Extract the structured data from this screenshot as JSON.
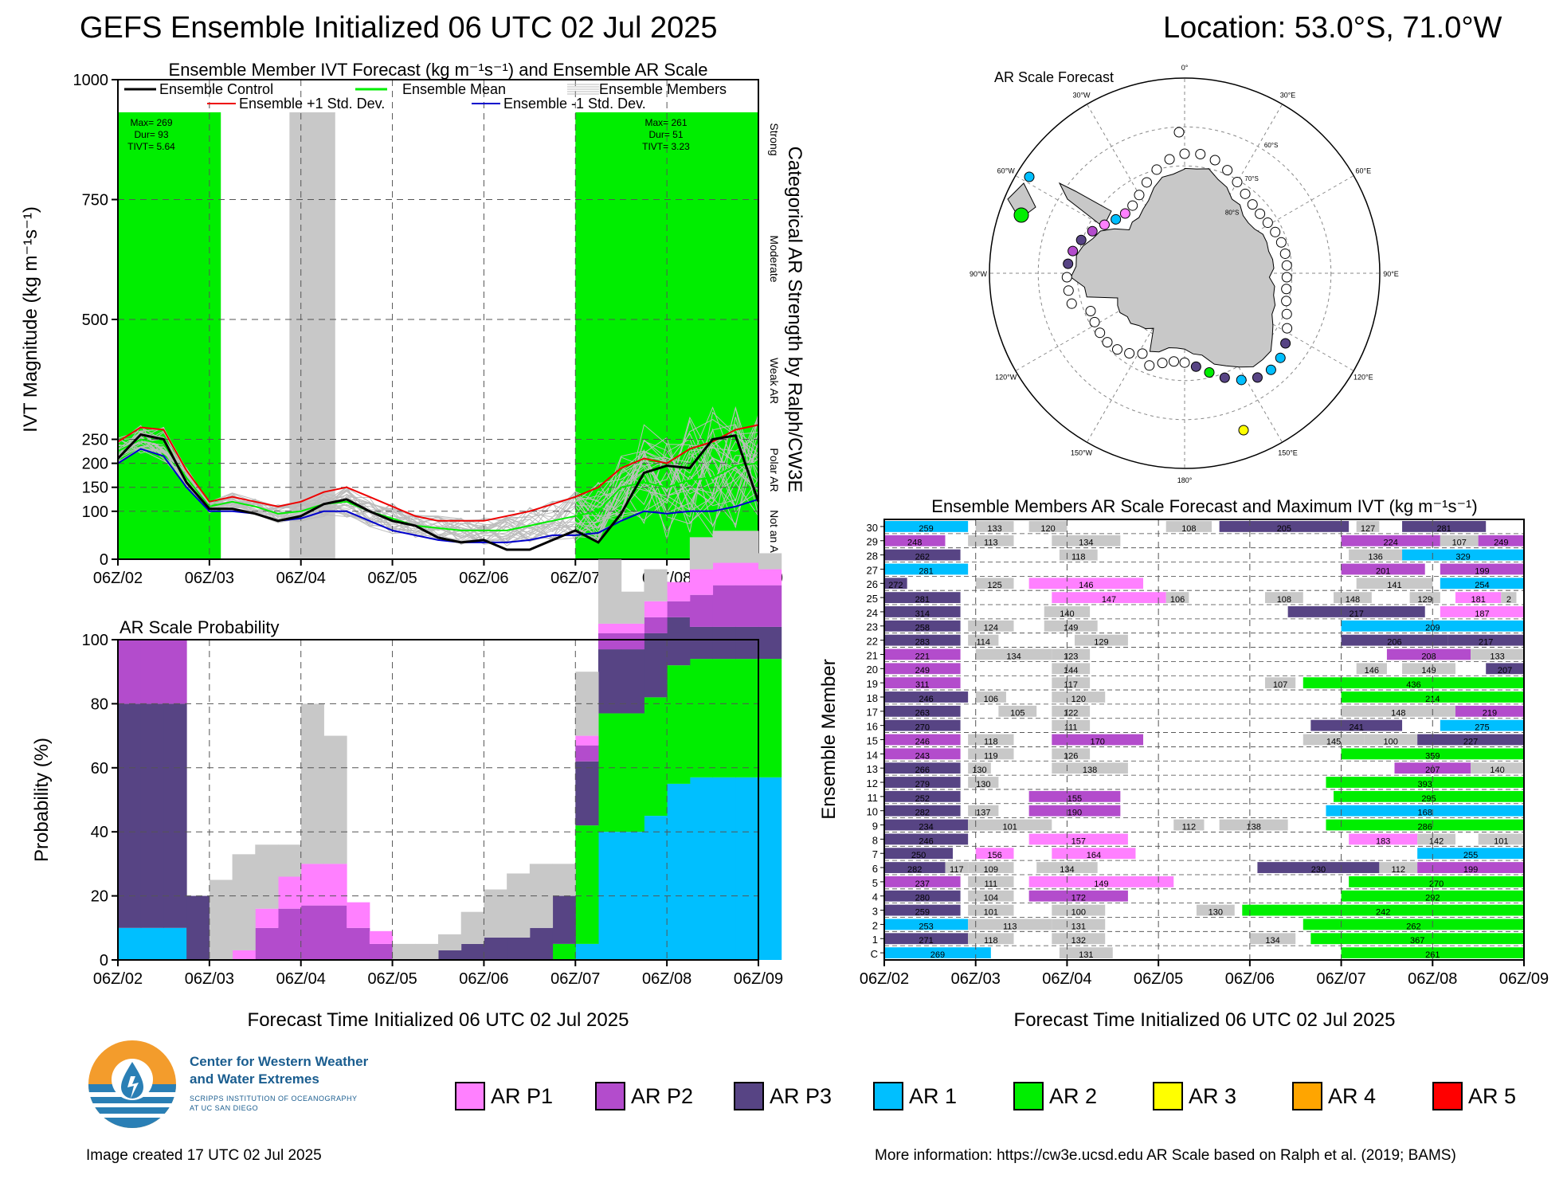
{
  "header": {
    "title": "GEFS Ensemble Initialized 06 UTC 02 Jul 2025",
    "location": "Location: 53.0°S, 71.0°W"
  },
  "colors": {
    "AR_P1": "#ff80ff",
    "AR_P2": "#b34ccc",
    "AR_P3": "#574484",
    "AR_1": "#00bfff",
    "AR_2": "#00ee00",
    "AR_3": "#ffff00",
    "AR_4": "#ffa500",
    "AR_5": "#ff0000",
    "gray": "#c8c8c8",
    "control": "#000000",
    "mean": "#00ee00",
    "plus": "#ee0000",
    "minus": "#0000cc"
  },
  "x_ticks": [
    "06Z/02",
    "06Z/03",
    "06Z/04",
    "06Z/05",
    "06Z/06",
    "06Z/07",
    "06Z/08",
    "06Z/09"
  ],
  "ivt_panel": {
    "subtitle": "Ensemble Member IVT Forecast (kg m⁻¹s⁻¹) and Ensemble AR Scale",
    "ylabel": "IVT Magnitude (kg m⁻¹s⁻¹)",
    "right_label": "Categorical AR Strength by Ralph/CW3E",
    "y_ticks": [
      0,
      100,
      150,
      200,
      250,
      500,
      750,
      1000
    ],
    "legend": {
      "control": "Ensemble Control",
      "mean": "Ensemble Mean",
      "members": "Ensemble Members",
      "plus": "Ensemble +1 Std. Dev.",
      "minus": "Ensemble -1 Std. Dev."
    },
    "categories": [
      "Strong",
      "Moderate",
      "Weak AR",
      "Polar AR",
      "Not an AR"
    ],
    "event1": {
      "max": "Max= 269",
      "dur": "Dur= 93",
      "tivt": "TIVT= 5.64"
    },
    "event2": {
      "max": "Max= 261",
      "dur": "Dur= 51",
      "tivt": "TIVT= 3.23"
    }
  },
  "prob_panel": {
    "subtitle": "AR Scale Probability",
    "ylabel": "Probability (%)",
    "xlabel": "Forecast Time Initialized 06 UTC 02 Jul 2025",
    "y_ticks": [
      0,
      20,
      40,
      60,
      80,
      100
    ]
  },
  "map_panel": {
    "title": "AR Scale Forecast",
    "lon_labels": [
      "0°",
      "30°E",
      "60°E",
      "90°E",
      "120°E",
      "150°E",
      "180°",
      "150°W",
      "120°W",
      "90°W",
      "60°W",
      "30°W"
    ],
    "lat_labels": [
      "60°S",
      "70°S",
      "80°S"
    ]
  },
  "members_panel": {
    "title": "Ensemble Members AR Scale Forecast and Maximum IVT (kg m⁻¹s⁻¹)",
    "ylabel": "Ensemble Member",
    "xlabel": "Forecast Time Initialized 06 UTC 02 Jul 2025",
    "rows": [
      "C",
      "1",
      "2",
      "3",
      "4",
      "5",
      "6",
      "7",
      "8",
      "9",
      "10",
      "11",
      "12",
      "13",
      "14",
      "15",
      "16",
      "17",
      "18",
      "19",
      "20",
      "21",
      "22",
      "23",
      "24",
      "25",
      "26",
      "27",
      "28",
      "29",
      "30"
    ]
  },
  "legend": [
    {
      "label": "AR P1",
      "key": "AR_P1"
    },
    {
      "label": "AR P2",
      "key": "AR_P2"
    },
    {
      "label": "AR P3",
      "key": "AR_P3"
    },
    {
      "label": "AR 1",
      "key": "AR_1"
    },
    {
      "label": "AR 2",
      "key": "AR_2"
    },
    {
      "label": "AR 3",
      "key": "AR_3"
    },
    {
      "label": "AR 4",
      "key": "AR_4"
    },
    {
      "label": "AR 5",
      "key": "AR_5"
    }
  ],
  "logo": {
    "line1": "Center for Western Weather",
    "line2": "and Water Extremes",
    "line3": "SCRIPPS INSTITUTION OF OCEANOGRAPHY",
    "line4": "AT UC SAN DIEGO"
  },
  "footer": {
    "created": "Image created 17 UTC 02 Jul 2025",
    "info": "More information: https://cw3e.ucsd.edu AR Scale based on Ralph et al. (2019; BAMS)"
  },
  "chart_data": [
    {
      "type": "line",
      "title": "Ensemble Member IVT Forecast (kg m⁻¹s⁻¹) and Ensemble AR Scale",
      "ylabel": "IVT Magnitude (kg m⁻¹s⁻¹)",
      "ylim": [
        0,
        1000
      ],
      "x_hours": [
        0,
        6,
        12,
        18,
        24,
        30,
        36,
        42,
        48,
        54,
        60,
        66,
        72,
        78,
        84,
        90,
        96,
        102,
        108,
        114,
        120,
        126,
        132,
        138,
        144,
        150,
        156,
        162,
        168
      ],
      "series": [
        {
          "name": "Ensemble Control",
          "values": [
            210,
            260,
            250,
            160,
            105,
            105,
            95,
            80,
            90,
            115,
            125,
            100,
            80,
            70,
            45,
            35,
            40,
            20,
            20,
            40,
            60,
            35,
            95,
            180,
            195,
            190,
            250,
            258,
            120
          ]
        },
        {
          "name": "Ensemble Mean",
          "values": [
            225,
            250,
            240,
            170,
            110,
            120,
            110,
            95,
            100,
            115,
            120,
            100,
            85,
            70,
            65,
            60,
            60,
            60,
            70,
            80,
            90,
            100,
            150,
            160,
            150,
            165,
            170,
            195,
            200
          ]
        },
        {
          "name": "Ensemble +1 Std. Dev.",
          "values": [
            245,
            275,
            270,
            185,
            120,
            130,
            120,
            110,
            120,
            140,
            150,
            130,
            110,
            90,
            80,
            80,
            80,
            90,
            100,
            115,
            130,
            150,
            190,
            210,
            200,
            230,
            245,
            270,
            280
          ]
        },
        {
          "name": "Ensemble -1 Std. Dev.",
          "values": [
            200,
            230,
            215,
            150,
            100,
            100,
            95,
            80,
            85,
            100,
            100,
            80,
            60,
            50,
            40,
            35,
            35,
            35,
            40,
            50,
            50,
            55,
            80,
            100,
            95,
            100,
            100,
            110,
            125
          ]
        }
      ],
      "ar_shading": [
        {
          "start_h": 0,
          "end_h": 27,
          "color": "AR_2"
        },
        {
          "start_h": 45,
          "end_h": 57,
          "color": "gray"
        },
        {
          "start_h": 120,
          "end_h": 168,
          "color": "AR_2"
        }
      ]
    },
    {
      "type": "area",
      "title": "AR Scale Probability",
      "ylabel": "Probability (%)",
      "ylim": [
        0,
        100
      ],
      "x_hours": [
        0,
        6,
        12,
        18,
        24,
        30,
        36,
        42,
        48,
        54,
        60,
        66,
        72,
        78,
        84,
        90,
        96,
        102,
        108,
        114,
        120,
        126,
        132,
        138,
        144,
        150,
        156,
        162,
        168
      ],
      "series": [
        {
          "name": "AR 1",
          "values": [
            10,
            10,
            10,
            0,
            0,
            0,
            0,
            0,
            0,
            0,
            0,
            0,
            0,
            0,
            0,
            0,
            0,
            0,
            0,
            0,
            5,
            40,
            40,
            45,
            55,
            57,
            57,
            57,
            57
          ]
        },
        {
          "name": "AR 2",
          "values": [
            0,
            0,
            0,
            0,
            0,
            0,
            0,
            0,
            0,
            0,
            0,
            0,
            0,
            0,
            0,
            0,
            0,
            0,
            0,
            5,
            37,
            37,
            37,
            37,
            37,
            37,
            37,
            37,
            37
          ]
        },
        {
          "name": "AR P3",
          "values": [
            70,
            70,
            70,
            20,
            0,
            0,
            0,
            0,
            0,
            0,
            0,
            0,
            0,
            0,
            3,
            5,
            7,
            7,
            10,
            15,
            20,
            20,
            20,
            20,
            15,
            10,
            10,
            10,
            10
          ]
        },
        {
          "name": "AR P2",
          "values": [
            20,
            20,
            20,
            0,
            0,
            0,
            10,
            16,
            17,
            17,
            10,
            5,
            0,
            0,
            0,
            0,
            0,
            0,
            0,
            0,
            5,
            5,
            5,
            5,
            5,
            10,
            13,
            13,
            13
          ]
        },
        {
          "name": "AR P1",
          "values": [
            0,
            0,
            0,
            0,
            0,
            3,
            6,
            10,
            13,
            13,
            8,
            4,
            0,
            0,
            0,
            0,
            0,
            0,
            0,
            0,
            3,
            3,
            3,
            5,
            6,
            8,
            7,
            7,
            5
          ]
        },
        {
          "name": "Other",
          "values": [
            0,
            0,
            0,
            0,
            25,
            30,
            20,
            10,
            50,
            40,
            0,
            0,
            5,
            5,
            5,
            10,
            15,
            20,
            20,
            10,
            20,
            20,
            10,
            10,
            0,
            10,
            10,
            10,
            5
          ]
        }
      ]
    }
  ]
}
